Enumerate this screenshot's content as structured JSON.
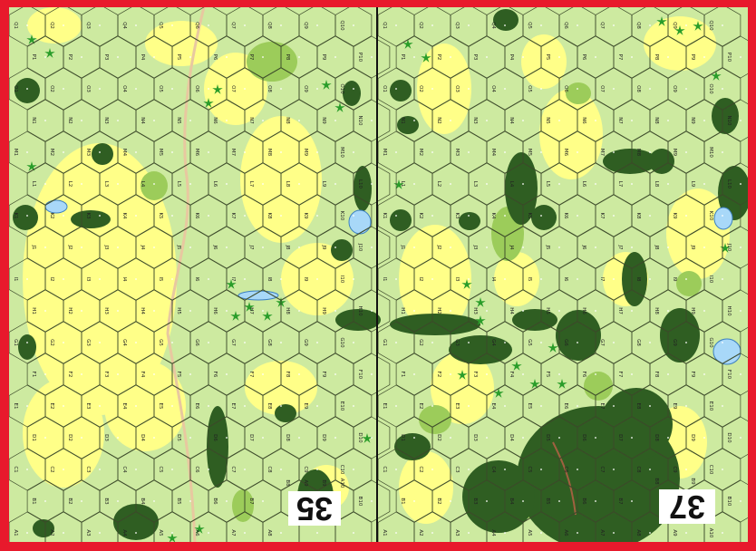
{
  "boards": [
    {
      "number": "35",
      "hex_rows": [
        "Q",
        "P",
        "O",
        "N",
        "M",
        "L",
        "K",
        "J",
        "I",
        "H",
        "G",
        "F",
        "E",
        "D",
        "C",
        "B",
        "A"
      ],
      "columns": [
        1,
        2,
        3,
        4,
        5,
        6,
        7,
        8,
        9,
        10
      ]
    },
    {
      "number": "37",
      "hex_rows": [
        "Q",
        "P",
        "O",
        "N",
        "M",
        "L",
        "K",
        "J",
        "I",
        "H",
        "G",
        "F",
        "E",
        "D",
        "C",
        "B",
        "A"
      ],
      "columns": [
        1,
        2,
        3,
        4,
        5,
        6,
        7,
        8,
        9,
        10
      ]
    }
  ],
  "colors": {
    "border": "#e8192c",
    "open_ground": "#cdeaa0",
    "grain": "#ffff88",
    "woods": "#2f5e22",
    "brush": "#9ccc5a",
    "palm": "#2a9d2a",
    "water": "#a8d8f8",
    "board_divider": "#111111"
  }
}
